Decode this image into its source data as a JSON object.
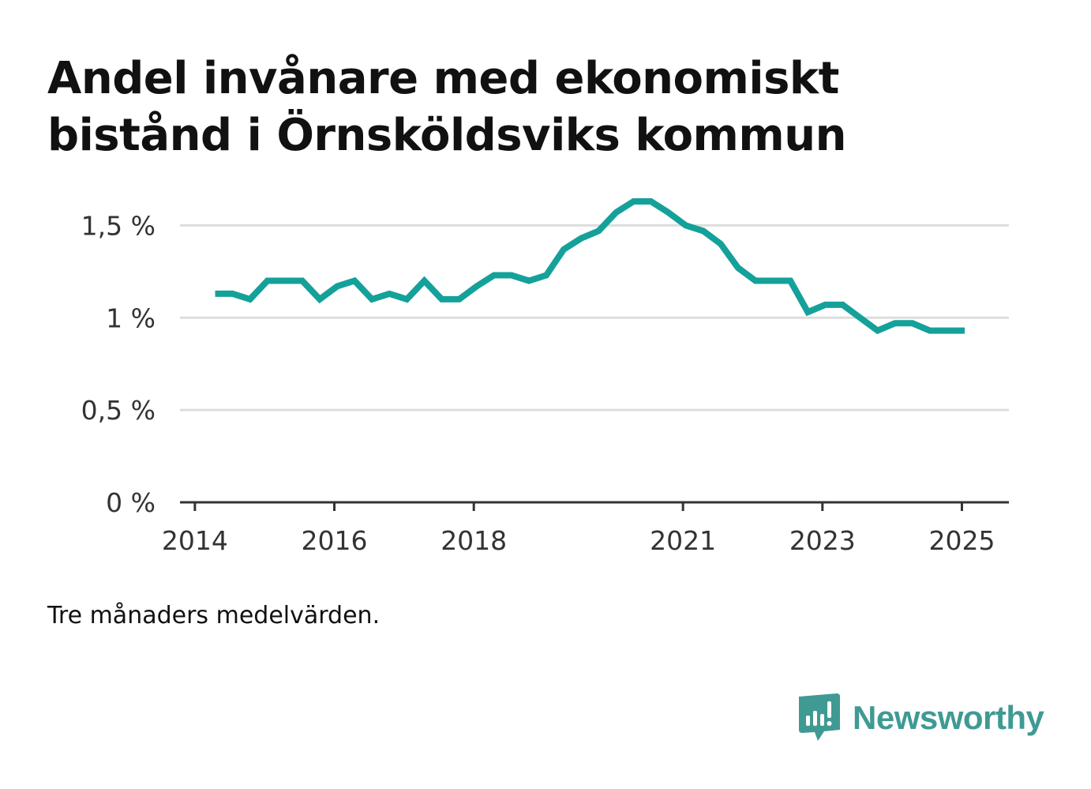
{
  "title": {
    "line1": "Andel invånare med ekonomiskt",
    "line2": "bistånd i Örnsköldsviks kommun"
  },
  "note": "Tre månaders medelvärden.",
  "brand": {
    "name": "Newsworthy",
    "icon": "newsworthy-logo-icon",
    "color": "#3f9a93"
  },
  "colors": {
    "line": "#14a19a",
    "grid": "#dddddd",
    "axis": "#333333",
    "tick_text": "#333333"
  },
  "chart_data": {
    "type": "line",
    "title": "Andel invånare med ekonomiskt bistånd i Örnsköldsviks kommun",
    "xlabel": "",
    "ylabel": "",
    "ylim": [
      0,
      1.6
    ],
    "grid": true,
    "y_ticks": [
      {
        "value": 0,
        "label": "0 %"
      },
      {
        "value": 0.5,
        "label": "0,5 %"
      },
      {
        "value": 1,
        "label": "1 %"
      },
      {
        "value": 1.5,
        "label": "1,5 %"
      }
    ],
    "x_ticks": [
      {
        "value": 2014.0,
        "label": "2014"
      },
      {
        "value": 2016.0,
        "label": "2016"
      },
      {
        "value": 2018.0,
        "label": "2018"
      },
      {
        "value": 2021.0,
        "label": "2021"
      },
      {
        "value": 2023.0,
        "label": "2023"
      },
      {
        "value": 2025.0,
        "label": "2025"
      }
    ],
    "series": [
      {
        "color": "#14a19a",
        "points": [
          [
            2014.29,
            1.13
          ],
          [
            2014.54,
            1.13
          ],
          [
            2014.79,
            1.1
          ],
          [
            2015.04,
            1.2
          ],
          [
            2015.29,
            1.2
          ],
          [
            2015.54,
            1.2
          ],
          [
            2015.79,
            1.1
          ],
          [
            2016.04,
            1.17
          ],
          [
            2016.29,
            1.2
          ],
          [
            2016.54,
            1.1
          ],
          [
            2016.79,
            1.13
          ],
          [
            2017.04,
            1.1
          ],
          [
            2017.29,
            1.2
          ],
          [
            2017.54,
            1.1
          ],
          [
            2017.79,
            1.1
          ],
          [
            2018.04,
            1.17
          ],
          [
            2018.29,
            1.23
          ],
          [
            2018.54,
            1.23
          ],
          [
            2018.79,
            1.2
          ],
          [
            2019.04,
            1.23
          ],
          [
            2019.29,
            1.37
          ],
          [
            2019.54,
            1.43
          ],
          [
            2019.79,
            1.47
          ],
          [
            2020.04,
            1.57
          ],
          [
            2020.29,
            1.63
          ],
          [
            2020.54,
            1.63
          ],
          [
            2020.79,
            1.57
          ],
          [
            2021.04,
            1.5
          ],
          [
            2021.29,
            1.47
          ],
          [
            2021.54,
            1.4
          ],
          [
            2021.79,
            1.27
          ],
          [
            2022.04,
            1.2
          ],
          [
            2022.29,
            1.2
          ],
          [
            2022.54,
            1.2
          ],
          [
            2022.79,
            1.03
          ],
          [
            2023.04,
            1.07
          ],
          [
            2023.29,
            1.07
          ],
          [
            2023.54,
            1.0
          ],
          [
            2023.79,
            0.93
          ],
          [
            2024.04,
            0.97
          ],
          [
            2024.29,
            0.97
          ],
          [
            2024.54,
            0.93
          ],
          [
            2024.79,
            0.93
          ],
          [
            2025.04,
            0.93
          ]
        ]
      }
    ]
  }
}
